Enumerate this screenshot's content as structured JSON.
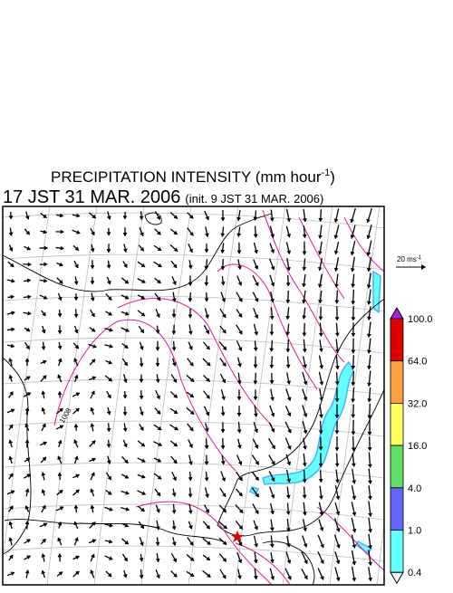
{
  "header": {
    "title": "PRECIPITATION INTENSITY (mm hour",
    "title_exponent": "-1",
    "title_close": ")",
    "valid_time": "17 JST 31 MAR. 2006",
    "init_time": "(init. 9 JST 31 MAR. 2006)"
  },
  "map": {
    "contour_label": "1008",
    "reference_vector": {
      "label": "20 ms",
      "exponent": "-1"
    }
  },
  "legend": {
    "labels": [
      "100.0",
      "64.0",
      "32.0",
      "16.0",
      "4.0",
      "1.0",
      "0.4"
    ],
    "over_color": "#a020f0",
    "under_color": "#ffffff",
    "colors": [
      "#e00000",
      "#ffa040",
      "#ffff60",
      "#60e060",
      "#6464ff",
      "#64ffff"
    ]
  }
}
